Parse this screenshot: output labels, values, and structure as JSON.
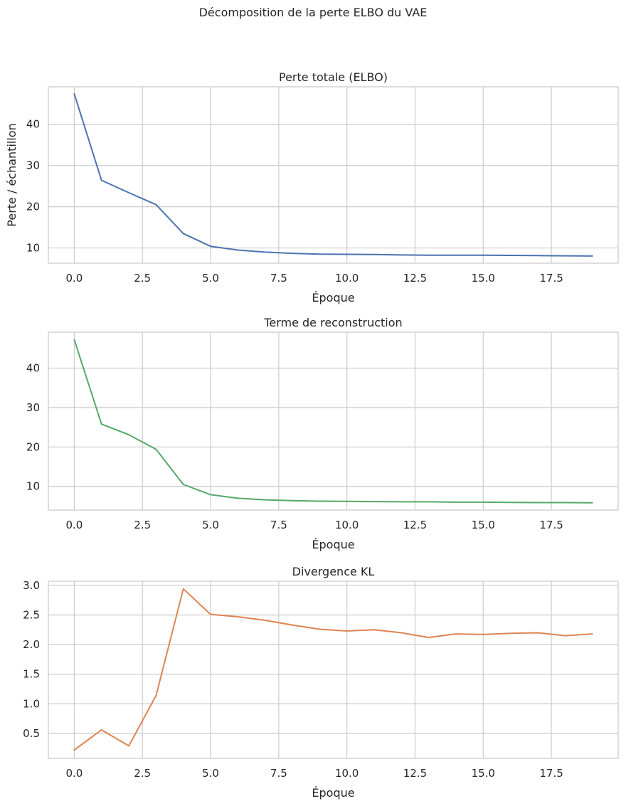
{
  "suptitle": "Décomposition de la perte ELBO du VAE",
  "chart_data": [
    {
      "type": "line",
      "title": "Perte totale (ELBO)",
      "xlabel": "Époque",
      "ylabel": "Perte / échantillon",
      "color": "#4c72b0",
      "x": [
        0,
        1,
        2,
        3,
        4,
        5,
        6,
        7,
        8,
        9,
        10,
        11,
        12,
        13,
        14,
        15,
        16,
        17,
        18,
        19
      ],
      "values": [
        47.4,
        26.4,
        23.4,
        20.5,
        13.5,
        10.4,
        9.5,
        9.0,
        8.7,
        8.5,
        8.45,
        8.4,
        8.3,
        8.25,
        8.25,
        8.25,
        8.2,
        8.15,
        8.1,
        8.05
      ],
      "xlim": [
        -0.95,
        19.95
      ],
      "ylim": [
        6.3,
        49.1
      ],
      "xticks": [
        0,
        2.5,
        5,
        7.5,
        10,
        12.5,
        15,
        17.5
      ],
      "xtick_labels": [
        "0.0",
        "2.5",
        "5.0",
        "7.5",
        "10.0",
        "12.5",
        "15.0",
        "17.5"
      ],
      "yticks": [
        10,
        20,
        30,
        40
      ],
      "ytick_labels": [
        "10",
        "20",
        "30",
        "40"
      ]
    },
    {
      "type": "line",
      "title": "Terme de reconstruction",
      "xlabel": "Époque",
      "ylabel": "",
      "color": "#55a868",
      "x": [
        0,
        1,
        2,
        3,
        4,
        5,
        6,
        7,
        8,
        9,
        10,
        11,
        12,
        13,
        14,
        15,
        16,
        17,
        18,
        19
      ],
      "values": [
        47.2,
        25.8,
        23.1,
        19.4,
        10.5,
        7.9,
        7.0,
        6.6,
        6.4,
        6.25,
        6.2,
        6.15,
        6.1,
        6.1,
        6.0,
        6.0,
        5.95,
        5.9,
        5.9,
        5.85
      ],
      "xlim": [
        -0.95,
        19.95
      ],
      "ylim": [
        4.0,
        49.1
      ],
      "xticks": [
        0,
        2.5,
        5,
        7.5,
        10,
        12.5,
        15,
        17.5
      ],
      "xtick_labels": [
        "0.0",
        "2.5",
        "5.0",
        "7.5",
        "10.0",
        "12.5",
        "15.0",
        "17.5"
      ],
      "yticks": [
        10,
        20,
        30,
        40
      ],
      "ytick_labels": [
        "10",
        "20",
        "30",
        "40"
      ]
    },
    {
      "type": "line",
      "title": "Divergence KL",
      "xlabel": "Époque",
      "ylabel": "",
      "color": "#dd8452",
      "x": [
        0,
        1,
        2,
        3,
        4,
        5,
        6,
        7,
        8,
        9,
        10,
        11,
        12,
        13,
        14,
        15,
        16,
        17,
        18,
        19
      ],
      "values": [
        0.22,
        0.56,
        0.29,
        1.14,
        2.94,
        2.51,
        2.47,
        2.41,
        2.33,
        2.26,
        2.23,
        2.25,
        2.2,
        2.12,
        2.18,
        2.17,
        2.19,
        2.2,
        2.15,
        2.18
      ],
      "xlim": [
        -0.95,
        19.95
      ],
      "ylim": [
        0.08,
        3.07
      ],
      "xticks": [
        0,
        2.5,
        5,
        7.5,
        10,
        12.5,
        15,
        17.5
      ],
      "xtick_labels": [
        "0.0",
        "2.5",
        "5.0",
        "7.5",
        "10.0",
        "12.5",
        "15.0",
        "17.5"
      ],
      "yticks": [
        0.5,
        1.0,
        1.5,
        2.0,
        2.5,
        3.0
      ],
      "ytick_labels": [
        "0.5",
        "1.0",
        "1.5",
        "2.0",
        "2.5",
        "3.0"
      ]
    }
  ]
}
